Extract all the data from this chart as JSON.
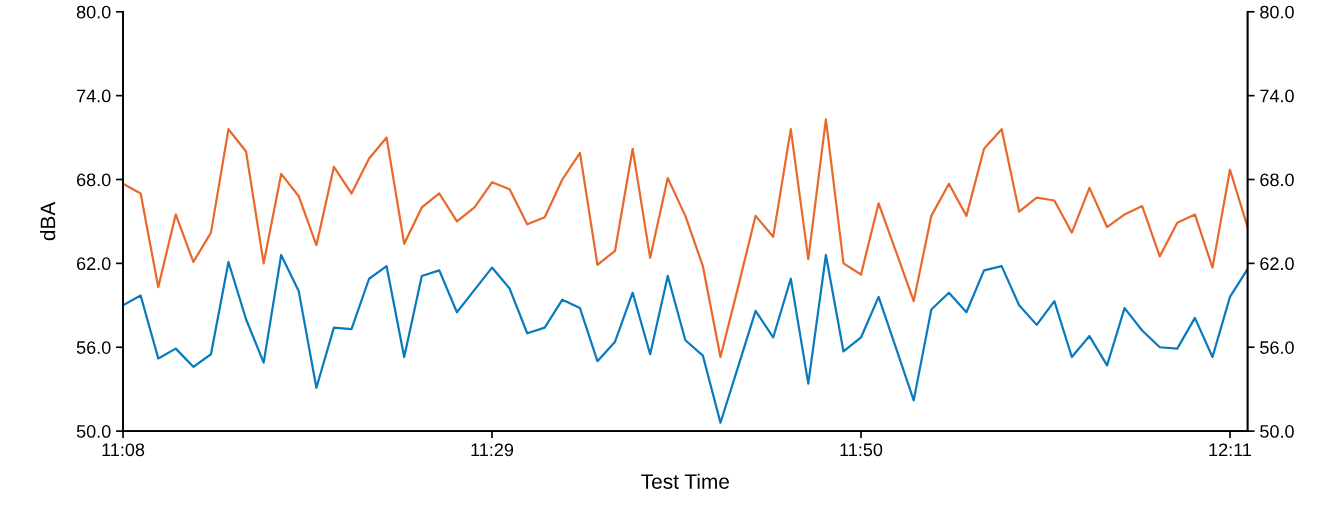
{
  "chart_data": {
    "type": "line",
    "xlabel": "Test Time",
    "ylabel": "dBA",
    "x": [
      11.1333,
      11.15,
      11.1667,
      11.1833,
      11.2,
      11.2167,
      11.2333,
      11.25,
      11.2667,
      11.2833,
      11.3,
      11.3167,
      11.3333,
      11.35,
      11.3667,
      11.3833,
      11.4,
      11.4167,
      11.4333,
      11.45,
      11.4667,
      11.4833,
      11.5,
      11.5167,
      11.5333,
      11.55,
      11.5667,
      11.5833,
      11.6,
      11.6167,
      11.6333,
      11.65,
      11.6667,
      11.6833,
      11.7,
      11.7167,
      11.7333,
      11.75,
      11.7667,
      11.7833,
      11.8,
      11.8167,
      11.8333,
      11.85,
      11.8667,
      11.8833,
      11.9,
      11.9167,
      11.9333,
      11.95,
      11.9667,
      11.9833,
      12.0,
      12.0167,
      12.0333,
      12.05,
      12.0667,
      12.0833,
      12.1,
      12.1167,
      12.1333,
      12.15,
      12.1667,
      12.1833,
      12.2
    ],
    "series": [
      {
        "color": "#e8692a",
        "values": [
          67.7,
          67.0,
          60.3,
          65.5,
          62.1,
          64.2,
          71.6,
          70.0,
          62.0,
          68.4,
          66.8,
          63.3,
          68.9,
          67.0,
          69.5,
          71.0,
          63.4,
          66.0,
          67.0,
          65.0,
          66.0,
          67.8,
          67.3,
          64.8,
          65.3,
          68.0,
          69.9,
          61.9,
          62.9,
          70.2,
          62.4,
          68.1,
          65.4,
          61.8,
          55.3,
          60.3,
          65.4,
          63.9,
          71.6,
          62.3,
          72.3,
          62.0,
          61.2,
          66.3,
          62.8,
          59.3,
          65.4,
          67.7,
          65.4,
          70.2,
          71.6,
          65.7,
          66.7,
          66.5,
          64.2,
          67.4,
          64.6,
          65.5,
          66.1,
          62.5,
          64.9,
          65.5,
          61.7,
          68.7,
          64.6
        ]
      },
      {
        "color": "#0a7abf",
        "values": [
          59.0,
          59.7,
          55.2,
          55.9,
          54.6,
          55.5,
          62.1,
          58.0,
          54.9,
          62.6,
          60.0,
          53.1,
          57.4,
          57.3,
          60.9,
          61.8,
          55.3,
          61.1,
          61.5,
          58.5,
          60.1,
          61.7,
          60.2,
          57.0,
          57.4,
          59.4,
          58.8,
          55.0,
          56.4,
          59.9,
          55.5,
          61.1,
          56.5,
          55.4,
          50.6,
          54.6,
          58.6,
          56.7,
          60.9,
          53.4,
          62.6,
          55.7,
          56.7,
          59.6,
          55.9,
          52.2,
          58.7,
          59.9,
          58.5,
          61.5,
          61.8,
          59.0,
          57.6,
          59.3,
          55.3,
          56.8,
          54.7,
          58.8,
          57.2,
          56.0,
          55.9,
          58.1,
          55.3,
          59.6,
          61.6
        ]
      }
    ],
    "xlim": [
      11.1333,
      12.2
    ],
    "xticks": [
      {
        "value": 11.1333,
        "label": "11:08"
      },
      {
        "value": 11.4833,
        "label": "11:29"
      },
      {
        "value": 11.8333,
        "label": "11:50"
      },
      {
        "value": 12.1833,
        "label": "12:11"
      }
    ],
    "ylim": [
      50,
      80
    ],
    "yticks": [
      {
        "value": 50,
        "label": "50.0"
      },
      {
        "value": 56,
        "label": "56.0"
      },
      {
        "value": 62,
        "label": "62.0"
      },
      {
        "value": 68,
        "label": "68.0"
      },
      {
        "value": 74,
        "label": "74.0"
      },
      {
        "value": 80,
        "label": "80.0"
      }
    ],
    "y2lim": [
      50,
      80
    ],
    "y2ticks": [
      {
        "value": 50,
        "label": "50.0"
      },
      {
        "value": 56,
        "label": "56.0"
      },
      {
        "value": 62,
        "label": "62.0"
      },
      {
        "value": 68,
        "label": "68.0"
      },
      {
        "value": 74,
        "label": "74.0"
      },
      {
        "value": 80,
        "label": "80.0"
      }
    ],
    "grid": false,
    "marker": "none",
    "line_style": "solid"
  }
}
